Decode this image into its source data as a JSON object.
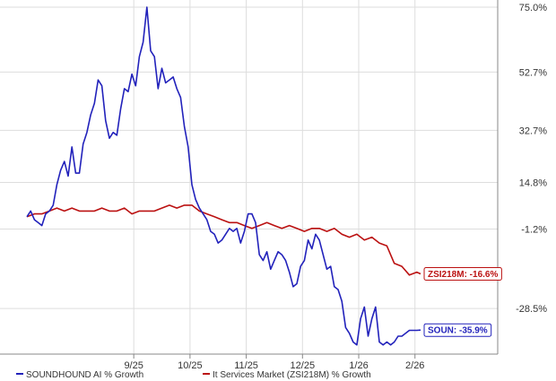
{
  "chart_data": {
    "type": "line",
    "title": "",
    "xlabel": "",
    "ylabel": "",
    "ylim": [
      -42,
      75
    ],
    "y_ticks": [
      "75.0%",
      "52.7%",
      "32.7%",
      "14.8%",
      "-1.2%",
      "-28.5%"
    ],
    "y_tick_values": [
      75.0,
      52.7,
      32.7,
      14.8,
      -1.2,
      -28.5
    ],
    "x_ticks": [
      "9/25",
      "10/25",
      "11/25",
      "12/25",
      "1/26",
      "2/26"
    ],
    "x_tick_values": [
      57,
      87,
      117,
      147,
      177,
      207
    ],
    "x_range": [
      0,
      232
    ],
    "grid": true,
    "legend_position": "bottom",
    "series": [
      {
        "name": "SOUNDHOUND AI % Growth",
        "color": "#2222bb",
        "end_label": "SOUN: -35.9%",
        "x": [
          0,
          2,
          4,
          6,
          8,
          10,
          12,
          14,
          16,
          18,
          20,
          22,
          24,
          26,
          28,
          30,
          32,
          34,
          36,
          38,
          40,
          42,
          44,
          46,
          48,
          50,
          52,
          54,
          56,
          58,
          60,
          62,
          64,
          66,
          68,
          70,
          72,
          74,
          76,
          78,
          80,
          82,
          84,
          86,
          88,
          90,
          92,
          94,
          96,
          98,
          100,
          102,
          104,
          106,
          108,
          110,
          112,
          114,
          116,
          118,
          120,
          122,
          124,
          126,
          128,
          130,
          132,
          134,
          136,
          138,
          140,
          142,
          144,
          146,
          148,
          150,
          152,
          154,
          156,
          158,
          160,
          162,
          164,
          166,
          168,
          170,
          172,
          174,
          176,
          178,
          180,
          182,
          184,
          186,
          188,
          190,
          192,
          194,
          196,
          198,
          200,
          202,
          204,
          206,
          208,
          210
        ],
        "values": [
          3,
          5,
          2,
          1,
          0,
          4,
          5,
          7,
          14,
          19,
          22,
          17,
          27,
          18,
          18,
          28,
          32,
          38,
          42,
          50,
          48,
          36,
          30,
          32,
          31,
          40,
          47,
          46,
          52,
          48,
          58,
          63,
          75,
          60,
          58,
          47,
          54,
          49,
          50,
          51,
          47,
          44,
          34,
          27,
          14,
          9,
          6,
          4,
          2,
          -2,
          -3,
          -6,
          -5,
          -3,
          -1,
          -2,
          -1,
          -6,
          -2,
          4,
          4,
          1,
          -10,
          -12,
          -9,
          -15,
          -12,
          -9,
          -10,
          -12,
          -16,
          -21,
          -20,
          -14,
          -12,
          -5,
          -8,
          -3,
          -5,
          -10,
          -15,
          -14,
          -21,
          -22,
          -26,
          -35,
          -37,
          -40,
          -41,
          -32,
          -28,
          -38,
          -32,
          -28,
          -40,
          -41,
          -40,
          -41,
          -40,
          -38,
          -38,
          -37,
          -36,
          -36,
          -36,
          -35.9
        ]
      },
      {
        "name": "It Services Market (ZSI218M) % Growth",
        "color": "#bb1111",
        "end_label": "ZSI218M: -16.6%",
        "x": [
          0,
          4,
          8,
          12,
          16,
          20,
          24,
          28,
          32,
          36,
          40,
          44,
          48,
          52,
          56,
          60,
          64,
          68,
          72,
          76,
          80,
          84,
          88,
          92,
          96,
          100,
          104,
          108,
          112,
          116,
          120,
          124,
          128,
          132,
          136,
          140,
          144,
          148,
          152,
          156,
          160,
          164,
          168,
          172,
          176,
          180,
          184,
          188,
          192,
          196,
          200,
          204,
          208,
          210
        ],
        "values": [
          3,
          4,
          4,
          5,
          6,
          5,
          6,
          5,
          5,
          5,
          6,
          5,
          5,
          6,
          4,
          5,
          5,
          5,
          6,
          7,
          6,
          7,
          7,
          5,
          4,
          3,
          2,
          1,
          1,
          0,
          -1,
          0,
          1,
          0,
          -1,
          0,
          -1,
          -2,
          -1,
          -1,
          -2,
          -1,
          -3,
          -4,
          -3,
          -5,
          -4,
          -6,
          -7,
          -13,
          -14,
          -17,
          -16,
          -16.6
        ]
      }
    ]
  }
}
